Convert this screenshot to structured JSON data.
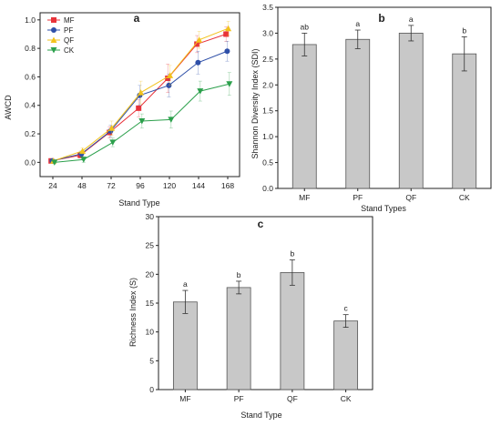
{
  "chart_data": [
    {
      "type": "line",
      "panel_label": "a",
      "xlabel": "Stand Type",
      "ylabel": "AWCD",
      "categories": [
        "24",
        "48",
        "72",
        "96",
        "120",
        "144",
        "168"
      ],
      "ylim": [
        -0.1,
        1.05
      ],
      "yticks": [
        "0.0",
        "0.2",
        "0.4",
        "0.6",
        "0.8",
        "1.0"
      ],
      "legend_position": "top-left",
      "series": [
        {
          "name": "MF",
          "color": "#e8333a",
          "marker": "square",
          "values": [
            0.01,
            0.05,
            0.21,
            0.38,
            0.59,
            0.83,
            0.9
          ],
          "errors": [
            0.01,
            0.02,
            0.04,
            0.06,
            0.1,
            0.06,
            0.05
          ]
        },
        {
          "name": "PF",
          "color": "#2e4fa8",
          "marker": "circle",
          "values": [
            0.01,
            0.06,
            0.22,
            0.47,
            0.54,
            0.7,
            0.78
          ],
          "errors": [
            0.01,
            0.02,
            0.04,
            0.07,
            0.08,
            0.08,
            0.07
          ]
        },
        {
          "name": "QF",
          "color": "#f2c21b",
          "marker": "triangle-up",
          "values": [
            0.01,
            0.08,
            0.24,
            0.49,
            0.61,
            0.86,
            0.94
          ],
          "errors": [
            0.01,
            0.02,
            0.05,
            0.08,
            0.07,
            0.06,
            0.05
          ]
        },
        {
          "name": "CK",
          "color": "#2ca04c",
          "marker": "triangle-down",
          "values": [
            0.0,
            0.02,
            0.14,
            0.29,
            0.3,
            0.5,
            0.55
          ],
          "errors": [
            0.01,
            0.02,
            0.03,
            0.05,
            0.06,
            0.07,
            0.08
          ]
        }
      ]
    },
    {
      "type": "bar",
      "panel_label": "b",
      "xlabel": "Stand Types",
      "ylabel": "Shannon Diversity Index (SDI)",
      "categories": [
        "MF",
        "PF",
        "QF",
        "CK"
      ],
      "values": [
        2.78,
        2.88,
        3.0,
        2.6
      ],
      "errors": [
        0.22,
        0.18,
        0.15,
        0.33
      ],
      "significance": [
        "ab",
        "a",
        "a",
        "b"
      ],
      "ylim": [
        0.0,
        3.5
      ],
      "yticks": [
        "0.0",
        "0.5",
        "1.0",
        "1.5",
        "2.0",
        "2.5",
        "3.0",
        "3.5"
      ]
    },
    {
      "type": "bar",
      "panel_label": "c",
      "xlabel": "Stand Type",
      "ylabel": "Richness Index (S)",
      "categories": [
        "MF",
        "PF",
        "QF",
        "CK"
      ],
      "values": [
        15.2,
        17.7,
        20.3,
        11.9
      ],
      "errors": [
        2.0,
        1.1,
        2.2,
        1.1
      ],
      "significance": [
        "a",
        "b",
        "b",
        "c"
      ],
      "ylim": [
        0,
        30
      ],
      "yticks": [
        "0",
        "5",
        "10",
        "15",
        "20",
        "25",
        "30"
      ]
    }
  ]
}
